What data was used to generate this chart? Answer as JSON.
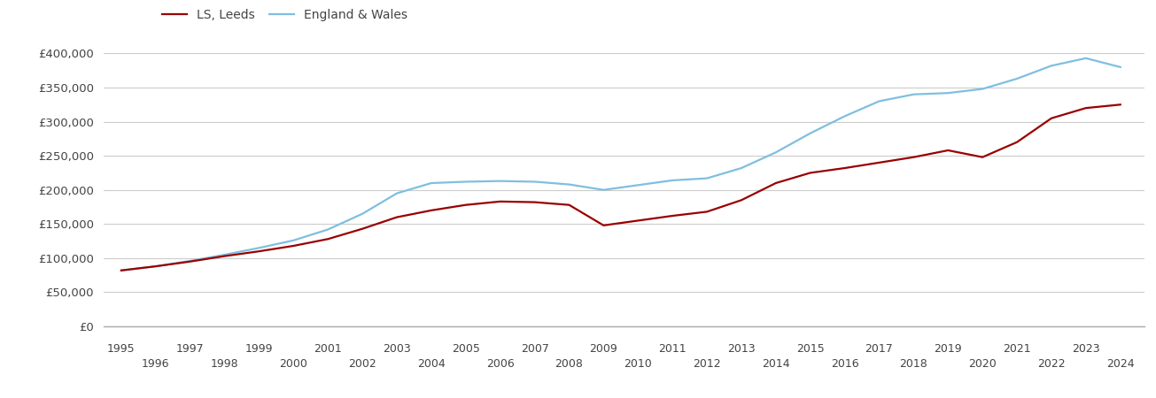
{
  "ls_leeds_label": "LS, Leeds",
  "england_wales_label": "England & Wales",
  "ls_leeds_color": "#990000",
  "england_wales_color": "#7FBFDF",
  "background_color": "#ffffff",
  "grid_color": "#cccccc",
  "ylim": [
    0,
    420000
  ],
  "yticks": [
    0,
    50000,
    100000,
    150000,
    200000,
    250000,
    300000,
    350000,
    400000
  ],
  "years": [
    1995,
    1996,
    1997,
    1998,
    1999,
    2000,
    2001,
    2002,
    2003,
    2004,
    2005,
    2006,
    2007,
    2008,
    2009,
    2010,
    2011,
    2012,
    2013,
    2014,
    2015,
    2016,
    2017,
    2018,
    2019,
    2020,
    2021,
    2022,
    2023,
    2024
  ],
  "ls_leeds": [
    82000,
    88000,
    95000,
    103000,
    110000,
    118000,
    128000,
    143000,
    160000,
    170000,
    178000,
    183000,
    182000,
    178000,
    148000,
    155000,
    162000,
    168000,
    185000,
    210000,
    225000,
    232000,
    240000,
    248000,
    258000,
    248000,
    270000,
    305000,
    320000,
    325000
  ],
  "england_wales": [
    82000,
    88000,
    96000,
    105000,
    115000,
    126000,
    142000,
    165000,
    195000,
    210000,
    212000,
    213000,
    212000,
    208000,
    200000,
    207000,
    214000,
    217000,
    232000,
    255000,
    283000,
    308000,
    330000,
    340000,
    342000,
    348000,
    363000,
    382000,
    393000,
    380000
  ],
  "x_major_ticks": [
    1995,
    1997,
    1999,
    2001,
    2003,
    2005,
    2007,
    2009,
    2011,
    2013,
    2015,
    2017,
    2019,
    2021,
    2023
  ],
  "x_minor_ticks": [
    1996,
    1998,
    2000,
    2002,
    2004,
    2006,
    2008,
    2010,
    2012,
    2014,
    2016,
    2018,
    2020,
    2022,
    2024
  ],
  "xlim_left": 1994.5,
  "xlim_right": 2024.7
}
